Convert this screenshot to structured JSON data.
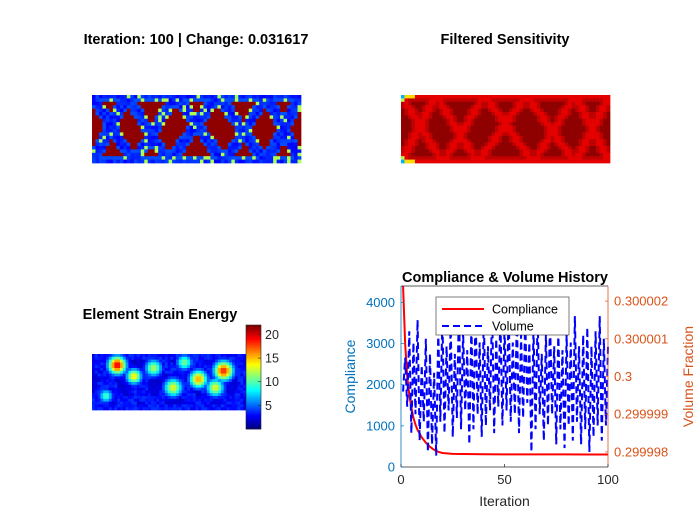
{
  "figure": {
    "titles": {
      "density": "Iteration: 100 | Change: 0.031617",
      "sensitivity": "Filtered Sensitivity",
      "strain": "Element Strain Energy",
      "history": "Compliance & Volume History"
    }
  },
  "chart_data": [
    {
      "type": "heatmap",
      "title": "Iteration: 100 | Change: 0.031617",
      "content": "topology density field",
      "colormap": "jet",
      "grid": [
        60,
        20
      ]
    },
    {
      "type": "heatmap",
      "title": "Filtered Sensitivity",
      "colormap": "jet",
      "grid": [
        60,
        20
      ]
    },
    {
      "type": "heatmap",
      "title": "Element Strain Energy",
      "colormap": "jet",
      "grid": [
        60,
        20
      ],
      "colorbar": {
        "min": 0,
        "max": 22,
        "ticks": [
          5,
          10,
          15,
          20
        ]
      }
    },
    {
      "type": "line",
      "title": "Compliance & Volume History",
      "xlabel": "Iteration",
      "ylabel": "Compliance",
      "y2label": "Volume Fraction",
      "xlim": [
        0,
        100
      ],
      "xticks": [
        0,
        50,
        100
      ],
      "ylim": [
        0,
        4400
      ],
      "yticks": [
        0,
        1000,
        2000,
        3000,
        4000
      ],
      "y2lim": [
        0.2999976,
        0.3000024
      ],
      "y2ticks": [
        0.299998,
        0.299999,
        0.3,
        0.300001,
        0.300002
      ],
      "y2ticklabels": [
        "0.299998",
        "0.299999",
        "0.3",
        "0.300001",
        "0.300002"
      ],
      "legend": {
        "position": "top-center"
      },
      "colors": {
        "left_axis": "#0072BD",
        "right_axis": "#D95319",
        "compliance": "#ff0000",
        "volume": "#0000ff"
      },
      "series": [
        {
          "name": "Compliance",
          "axis": "left",
          "style": "solid",
          "x": [
            1,
            2,
            3,
            4,
            5,
            6,
            7,
            8,
            10,
            12,
            14,
            16,
            18,
            20,
            25,
            30,
            40,
            50,
            60,
            70,
            80,
            90,
            100
          ],
          "y": [
            4400,
            3000,
            2200,
            1750,
            1450,
            1200,
            1030,
            900,
            720,
            590,
            490,
            420,
            370,
            340,
            320,
            315,
            310,
            308,
            307,
            306,
            306,
            305,
            305
          ]
        },
        {
          "name": "Volume",
          "axis": "right",
          "style": "dashed",
          "x": [
            1,
            2,
            3,
            4,
            5,
            6,
            7,
            8,
            9,
            10,
            11,
            12,
            13,
            14,
            15,
            16,
            17,
            18,
            19,
            20,
            21,
            22,
            23,
            24,
            25,
            26,
            27,
            28,
            29,
            30,
            31,
            32,
            33,
            34,
            35,
            36,
            37,
            38,
            39,
            40,
            41,
            42,
            43,
            44,
            45,
            46,
            47,
            48,
            49,
            50,
            51,
            52,
            53,
            54,
            55,
            56,
            57,
            58,
            59,
            60,
            61,
            62,
            63,
            64,
            65,
            66,
            67,
            68,
            69,
            70,
            71,
            72,
            73,
            74,
            75,
            76,
            77,
            78,
            79,
            80,
            81,
            82,
            83,
            84,
            85,
            86,
            87,
            88,
            89,
            90,
            91,
            92,
            93,
            94,
            95,
            96,
            97,
            98,
            99,
            100
          ],
          "y": [
            0.2999996,
            0.3000005,
            0.2999992,
            0.3000012,
            0.2999985,
            0.3000009,
            0.299999,
            0.3000015,
            0.2999983,
            0.3000003,
            0.2999988,
            0.300001,
            0.299998,
            0.3000006,
            0.2999982,
            0.3000001,
            0.2999979,
            0.3000012,
            0.2999988,
            0.3000016,
            0.2999985,
            0.3000008,
            0.2999991,
            0.3000014,
            0.2999984,
            0.3000006,
            0.2999989,
            0.3000019,
            0.2999986,
            0.3000012,
            0.2999991,
            0.3000007,
            0.2999982,
            0.3000014,
            0.2999986,
            0.3000018,
            0.299999,
            0.3000009,
            0.2999984,
            0.3000016,
            0.2999987,
            0.3000008,
            0.2999991,
            0.3000019,
            0.2999985,
            0.300001,
            0.2999992,
            0.3000016,
            0.2999987,
            0.3000013,
            0.2999991,
            0.3000018,
            0.2999988,
            0.3000009,
            0.299999,
            0.3000016,
            0.2999985,
            0.3000011,
            0.2999989,
            0.3000015,
            0.2999993,
            0.3000009,
            0.299998,
            0.3000013,
            0.2999986,
            0.3000016,
            0.299999,
            0.3000006,
            0.2999983,
            0.3000011,
            0.2999987,
            0.3000015,
            0.299999,
            0.3000008,
            0.2999982,
            0.3000012,
            0.2999986,
            0.3000007,
            0.2999981,
            0.3000011,
            0.2999987,
            0.3000009,
            0.2999983,
            0.3000016,
            0.2999988,
            0.3000008,
            0.2999982,
            0.3000011,
            0.2999986,
            0.3000013,
            0.299998,
            0.3000008,
            0.2999984,
            0.3000012,
            0.2999987,
            0.3000016,
            0.2999983,
            0.300001,
            0.2999987,
            0.3000008
          ]
        }
      ]
    }
  ]
}
